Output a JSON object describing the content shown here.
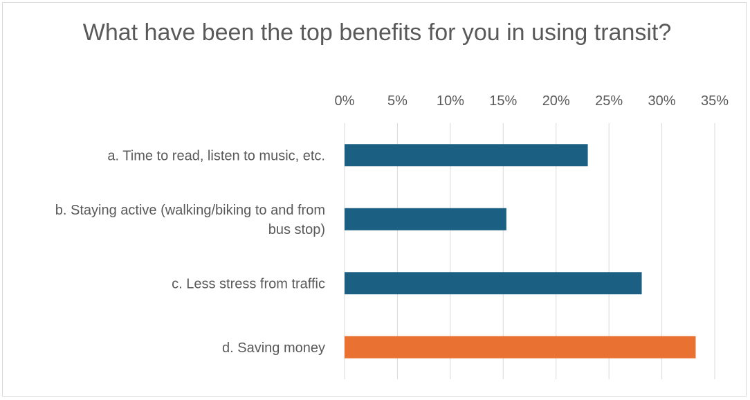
{
  "chart_data": {
    "type": "bar",
    "orientation": "horizontal",
    "title": "What have been the top benefits for you in using transit?",
    "xlabel": "",
    "ylabel": "",
    "categories": [
      "a. Time to read, listen to music, etc.",
      "b. Staying active (walking/biking to and from bus stop)",
      "c. Less stress from traffic",
      "d. Saving money"
    ],
    "values": [
      0.23,
      0.153,
      0.281,
      0.332
    ],
    "bar_colors": [
      "#1b6082",
      "#1b6082",
      "#1b6082",
      "#e97132"
    ],
    "xlim": [
      0,
      0.35
    ],
    "x_ticks": [
      0,
      0.05,
      0.1,
      0.15,
      0.2,
      0.25,
      0.3,
      0.35
    ],
    "x_tick_labels": [
      "0%",
      "5%",
      "10%",
      "15%",
      "20%",
      "25%",
      "30%",
      "35%"
    ],
    "x_axis_position": "top",
    "grid": true,
    "legend": "none"
  },
  "colors": {
    "primary_bar": "#1b6082",
    "highlight_bar": "#e97132",
    "gridline": "#d9d9d9",
    "text": "#595959"
  }
}
